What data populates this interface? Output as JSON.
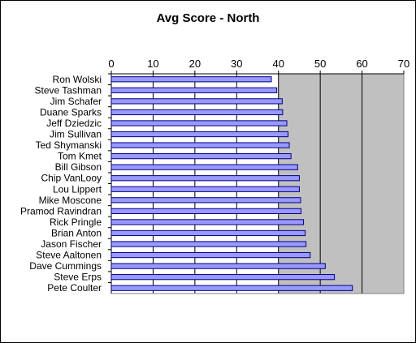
{
  "chart_data": {
    "type": "bar",
    "orientation": "horizontal",
    "title": "Avg Score - North",
    "xlabel": "",
    "ylabel": "",
    "xlim": [
      0,
      70
    ],
    "xticks": [
      0,
      10,
      20,
      30,
      40,
      50,
      60,
      70
    ],
    "grid": true,
    "categories": [
      "Ron Wolski",
      "Steve Tashman",
      "Jim Schafer",
      "Duane Sparks",
      "Jeff Dziedzic",
      "Jim Sullivan",
      "Ted Shymanski",
      "Tom Kmet",
      "Bill Gibson",
      "Chip VanLooy",
      "Lou Lippert",
      "Mike Moscone",
      "Pramod Ravindran",
      "Rick Pringle",
      "Brian Anton",
      "Jason Fischer",
      "Steve Aaltonen",
      "Dave Cummings",
      "Steve Erps",
      "Pete Coulter"
    ],
    "values": [
      38.3,
      39.6,
      40.9,
      41.0,
      42.0,
      42.3,
      42.6,
      43.0,
      44.6,
      45.0,
      45.0,
      45.3,
      45.4,
      46.0,
      46.4,
      46.6,
      47.6,
      51.2,
      53.4,
      57.7
    ],
    "colors": {
      "bar": "#9999ff",
      "bar_edge": "#000080",
      "plot_bg": "#c0c0c0",
      "grid": "#000000"
    }
  }
}
